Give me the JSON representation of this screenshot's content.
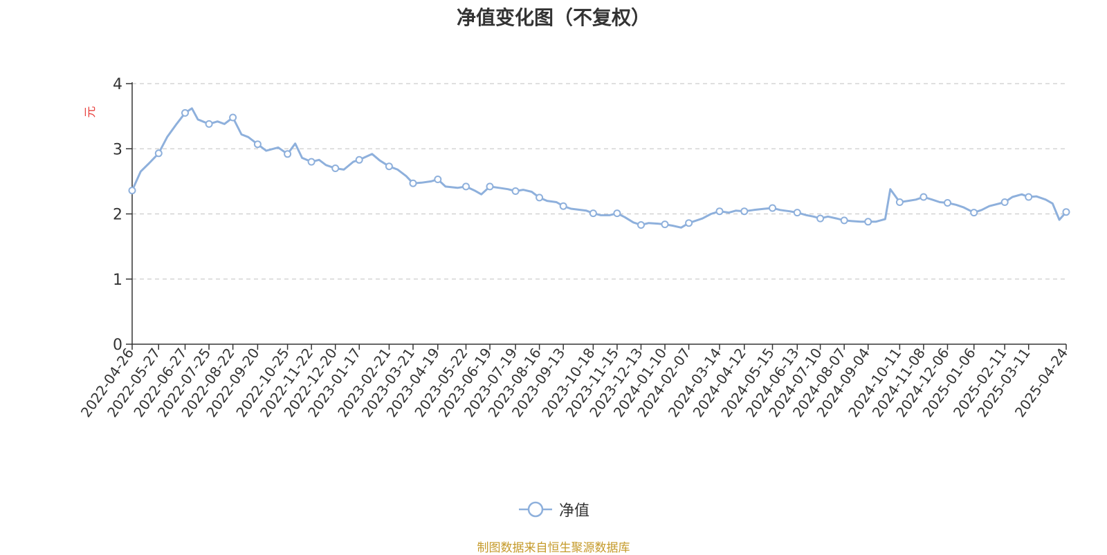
{
  "chart_data": {
    "type": "line",
    "title": "净值变化图（不复权）",
    "ylabel": "元",
    "ylim": [
      0,
      4
    ],
    "yticks": [
      0,
      1,
      2,
      3,
      4
    ],
    "grid": true,
    "legend_position": "bottom",
    "x_tick_labels": [
      "2022-04-26",
      "2022-05-27",
      "2022-06-27",
      "2022-07-25",
      "2022-08-22",
      "2022-09-20",
      "2022-10-25",
      "2022-11-22",
      "2022-12-20",
      "2023-01-17",
      "2023-02-21",
      "2023-03-21",
      "2023-04-19",
      "2023-05-22",
      "2023-06-19",
      "2023-07-19",
      "2023-08-16",
      "2023-09-13",
      "2023-10-18",
      "2023-11-15",
      "2023-12-13",
      "2024-01-10",
      "2024-02-07",
      "2024-03-14",
      "2024-04-12",
      "2024-05-15",
      "2024-06-13",
      "2024-07-10",
      "2024-08-07",
      "2024-09-04",
      "2024-10-11",
      "2024-11-08",
      "2024-12-06",
      "2025-01-06",
      "2025-02-11",
      "2025-03-11",
      "2025-04-24"
    ],
    "series": [
      {
        "name": "净值",
        "color": "#8eb0dc",
        "x": [
          "2022-04-26",
          "2022-05-06",
          "2022-05-16",
          "2022-05-27",
          "2022-06-06",
          "2022-06-17",
          "2022-06-27",
          "2022-07-05",
          "2022-07-12",
          "2022-07-25",
          "2022-08-04",
          "2022-08-12",
          "2022-08-22",
          "2022-09-01",
          "2022-09-09",
          "2022-09-20",
          "2022-09-30",
          "2022-10-14",
          "2022-10-25",
          "2022-11-03",
          "2022-11-11",
          "2022-11-22",
          "2022-12-01",
          "2022-12-09",
          "2022-12-20",
          "2022-12-30",
          "2023-01-10",
          "2023-01-17",
          "2023-02-01",
          "2023-02-10",
          "2023-02-21",
          "2023-03-03",
          "2023-03-13",
          "2023-03-21",
          "2023-03-31",
          "2023-04-11",
          "2023-04-19",
          "2023-04-28",
          "2023-05-12",
          "2023-05-22",
          "2023-06-01",
          "2023-06-09",
          "2023-06-19",
          "2023-06-30",
          "2023-07-10",
          "2023-07-19",
          "2023-07-28",
          "2023-08-07",
          "2023-08-16",
          "2023-08-25",
          "2023-09-05",
          "2023-09-13",
          "2023-09-22",
          "2023-10-10",
          "2023-10-18",
          "2023-10-27",
          "2023-11-06",
          "2023-11-15",
          "2023-11-24",
          "2023-12-04",
          "2023-12-13",
          "2023-12-22",
          "2024-01-02",
          "2024-01-10",
          "2024-01-19",
          "2024-01-29",
          "2024-02-07",
          "2024-02-23",
          "2024-03-04",
          "2024-03-14",
          "2024-03-25",
          "2024-04-02",
          "2024-04-12",
          "2024-04-23",
          "2024-05-06",
          "2024-05-15",
          "2024-05-24",
          "2024-06-04",
          "2024-06-13",
          "2024-06-24",
          "2024-07-02",
          "2024-07-10",
          "2024-07-19",
          "2024-07-29",
          "2024-08-07",
          "2024-08-16",
          "2024-08-26",
          "2024-09-04",
          "2024-09-13",
          "2024-09-24",
          "2024-09-30",
          "2024-10-11",
          "2024-10-21",
          "2024-10-30",
          "2024-11-08",
          "2024-11-18",
          "2024-11-27",
          "2024-12-06",
          "2024-12-16",
          "2024-12-25",
          "2025-01-06",
          "2025-01-15",
          "2025-01-24",
          "2025-02-11",
          "2025-02-20",
          "2025-03-03",
          "2025-03-11",
          "2025-03-20",
          "2025-03-31",
          "2025-04-08",
          "2025-04-16",
          "2025-04-24"
        ],
        "values": [
          2.36,
          2.65,
          2.78,
          2.93,
          3.18,
          3.38,
          3.55,
          3.62,
          3.45,
          3.38,
          3.42,
          3.38,
          3.48,
          3.22,
          3.18,
          3.07,
          2.97,
          3.02,
          2.92,
          3.08,
          2.86,
          2.8,
          2.83,
          2.75,
          2.7,
          2.68,
          2.8,
          2.83,
          2.92,
          2.82,
          2.73,
          2.68,
          2.58,
          2.47,
          2.48,
          2.5,
          2.53,
          2.42,
          2.4,
          2.42,
          2.36,
          2.3,
          2.42,
          2.4,
          2.38,
          2.35,
          2.37,
          2.34,
          2.25,
          2.2,
          2.18,
          2.12,
          2.08,
          2.05,
          2.01,
          1.98,
          1.98,
          2.01,
          1.95,
          1.87,
          1.83,
          1.86,
          1.85,
          1.84,
          1.82,
          1.79,
          1.86,
          1.93,
          2.0,
          2.04,
          2.02,
          2.05,
          2.04,
          2.06,
          2.08,
          2.09,
          2.06,
          2.04,
          2.02,
          1.98,
          1.96,
          1.93,
          1.96,
          1.93,
          1.9,
          1.89,
          1.88,
          1.88,
          1.88,
          1.92,
          2.38,
          2.18,
          2.2,
          2.22,
          2.26,
          2.22,
          2.18,
          2.17,
          2.14,
          2.1,
          2.02,
          2.06,
          2.12,
          2.18,
          2.26,
          2.3,
          2.26,
          2.27,
          2.22,
          2.16,
          1.91,
          2.03
        ]
      }
    ]
  },
  "legend": {
    "label": "净值"
  },
  "source_note": "制图数据来自恒生聚源数据库"
}
